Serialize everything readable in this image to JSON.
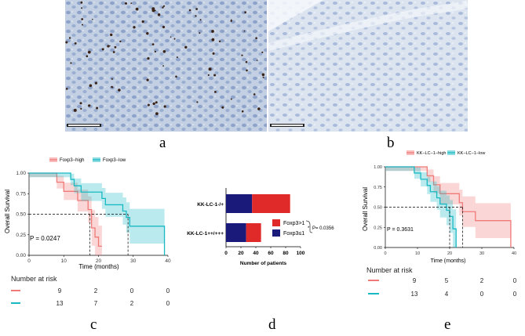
{
  "captions": {
    "a": "a",
    "b": "b",
    "c": "c",
    "d": "d",
    "e": "e"
  },
  "colors": {
    "red": "#f07a78",
    "cyan": "#19b9c3",
    "darkred": "#e02a2a",
    "navy": "#1a1a7a"
  },
  "panel_c": {
    "chart_data": {
      "type": "line",
      "legend": [
        "Foxp3−high",
        "Foxp3−low"
      ],
      "pvalue": "P = 0.0247",
      "ylabel": "Overall Survival",
      "xlabel": "Time (months)",
      "xticks": [
        "0",
        "10",
        "20",
        "30",
        "40"
      ],
      "yticks": [
        "0.00",
        "0.25",
        "0.50",
        "0.75",
        "1.00"
      ],
      "xlim": [
        0,
        40
      ],
      "ylim": [
        0,
        1
      ],
      "series": [
        {
          "name": "Foxp3−high",
          "steps": [
            [
              0,
              1
            ],
            [
              8,
              0.889
            ],
            [
              10,
              0.778
            ],
            [
              14,
              0.667
            ],
            [
              17,
              0.556
            ],
            [
              18,
              0.333
            ],
            [
              19,
              0.222
            ],
            [
              20,
              0.111
            ],
            [
              21,
              0.111
            ]
          ]
        },
        {
          "name": "Foxp3−low",
          "steps": [
            [
              0,
              1
            ],
            [
              12,
              0.923
            ],
            [
              13,
              0.846
            ],
            [
              15,
              0.769
            ],
            [
              21,
              0.692
            ],
            [
              22,
              0.615
            ],
            [
              27,
              0.538
            ],
            [
              28,
              0.461
            ],
            [
              29,
              0.354
            ],
            [
              39,
              0.354
            ],
            [
              39,
              0
            ]
          ]
        }
      ],
      "medians": [
        17.5,
        28.5
      ]
    },
    "risk": {
      "title": "Number at risk",
      "rows": [
        [
          "9",
          "2",
          "0",
          "0"
        ],
        [
          "13",
          "7",
          "2",
          "0"
        ]
      ]
    }
  },
  "panel_d": {
    "chart_data": {
      "type": "bar",
      "orientation": "horizontal",
      "categories": [
        "KK-LC-1-/+",
        "KK-LC-1++/+++"
      ],
      "series": [
        {
          "name": "Foxp3≤1",
          "values": [
            35,
            27
          ]
        },
        {
          "name": "Foxp3>1",
          "values": [
            51,
            20
          ]
        }
      ],
      "xlabel": "Number of patients",
      "xticks": [
        "0",
        "20",
        "40",
        "60",
        "80",
        "100"
      ],
      "xlim": [
        0,
        100
      ],
      "pvalue": "P= 0.0356",
      "star": "*",
      "legend": [
        "Foxp3>1",
        "Foxp3≤1"
      ]
    }
  },
  "panel_e": {
    "chart_data": {
      "type": "line",
      "legend": [
        "KK−LC−1−high",
        "KK−LC−1−low"
      ],
      "pvalue": "P = 0.3631",
      "ylabel": "Overall Survival",
      "xlabel": "Time (months)",
      "xticks": [
        "0",
        "10",
        "20",
        "30",
        "40"
      ],
      "yticks": [
        "0.00",
        "0.25",
        "0.50",
        "0.75",
        "1.00"
      ],
      "xlim": [
        0,
        40
      ],
      "ylim": [
        0,
        1
      ],
      "series": [
        {
          "name": "KK−LC−1−high",
          "steps": [
            [
              0,
              1
            ],
            [
              13,
              0.889
            ],
            [
              15,
              0.778
            ],
            [
              17,
              0.667
            ],
            [
              23,
              0.556
            ],
            [
              24,
              0.444
            ],
            [
              28,
              0.333
            ],
            [
              38,
              0.333
            ],
            [
              39,
              0.0
            ]
          ]
        },
        {
          "name": "KK−LC−1−low",
          "steps": [
            [
              0,
              1
            ],
            [
              9,
              0.923
            ],
            [
              11,
              0.846
            ],
            [
              13,
              0.769
            ],
            [
              14,
              0.692
            ],
            [
              16,
              0.615
            ],
            [
              17,
              0.538
            ],
            [
              19,
              0.461
            ],
            [
              20,
              0.385
            ],
            [
              21,
              0.231
            ],
            [
              22,
              0.0
            ]
          ]
        }
      ],
      "medians": [
        24,
        20
      ]
    },
    "risk": {
      "title": "Number at risk",
      "rows": [
        [
          "9",
          "5",
          "2",
          "0"
        ],
        [
          "13",
          "4",
          "0",
          "0"
        ]
      ]
    }
  }
}
